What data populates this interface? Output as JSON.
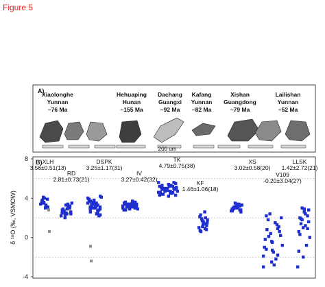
{
  "figure_title": "Figure 5",
  "panel_a": {
    "label": "A)",
    "scale_label": "200 um",
    "samples": [
      {
        "name": "Xiaolonghe",
        "province": "Yunnan",
        "age": "~76 Ma"
      },
      {
        "name": "Hehuaping",
        "province": "Hunan",
        "age": "~155 Ma"
      },
      {
        "name": "Dachang",
        "province": "Guangxi",
        "age": "~92 Ma"
      },
      {
        "name": "Kafang",
        "province": "Yunnan",
        "age": "~82 Ma"
      },
      {
        "name": "Xishan",
        "province": "Guangdong",
        "age": "~79 Ma"
      },
      {
        "name": "Lailishan",
        "province": "Yunnan",
        "age": "~52 Ma"
      }
    ]
  },
  "colors": {
    "data": "#1f2fcf",
    "outlier": "#8a8a8a",
    "title": "#e0231d",
    "gridline": "#bdbdbd"
  },
  "chart_data": {
    "type": "scatter",
    "panel_label": "B)",
    "ylabel": "δ ¹⁸O (‰, VSMOW)",
    "ylim": [
      -4,
      8
    ],
    "yticks": [
      -4,
      0,
      4,
      8
    ],
    "gridlines": [
      -2,
      2,
      6
    ],
    "groups": [
      {
        "code": "XLH",
        "stats": "3.56±0.51(13)",
        "values": [
          3.4,
          4.0,
          3.2,
          3.8,
          3.5,
          3.1,
          3.7,
          3.3,
          3.9,
          3.6,
          3.0,
          3.5,
          4.1
        ],
        "outliers": [
          2.8,
          0.6
        ]
      },
      {
        "code": "RD",
        "stats": "2.81±0.73(21)",
        "values": [
          2.2,
          2.5,
          3.0,
          2.7,
          3.3,
          2.4,
          2.9,
          3.1,
          2.6,
          2.3,
          3.4,
          2.8,
          2.0,
          3.2,
          2.5,
          2.9,
          3.0,
          2.6,
          2.4,
          3.5,
          2.7
        ]
      },
      {
        "code": "DSPK",
        "stats": "3.25±1.17(31)",
        "values": [
          4.0,
          3.6,
          3.3,
          2.9,
          3.8,
          3.1,
          2.6,
          3.5,
          4.2,
          3.0,
          2.4,
          3.7,
          3.4,
          2.8,
          3.9,
          3.2,
          2.2,
          3.6,
          3.0,
          4.1,
          3.3,
          2.7,
          3.5,
          3.8,
          2.5,
          3.1,
          3.4,
          2.9,
          3.7,
          3.2,
          2.3
        ],
        "outliers": [
          -0.9,
          -2.4
        ]
      },
      {
        "code": "IV",
        "stats": "3.27±0.42(32)",
        "values": [
          3.0,
          3.4,
          3.2,
          3.6,
          2.9,
          3.3,
          3.5,
          3.1,
          3.4,
          3.2,
          3.7,
          2.8,
          3.3,
          3.0,
          3.5,
          3.2,
          3.6,
          3.1,
          3.4,
          2.9,
          3.3,
          3.5,
          3.2,
          3.0,
          3.6,
          3.4,
          3.1,
          3.3,
          2.8,
          3.5,
          3.2,
          3.4
        ]
      },
      {
        "code": "TK",
        "stats": "4.79±0.75(38)",
        "values": [
          4.6,
          5.0,
          5.2,
          4.4,
          4.8,
          5.5,
          4.9,
          4.5,
          5.1,
          4.7,
          5.3,
          4.3,
          4.8,
          5.0,
          4.6,
          5.4,
          4.9,
          4.4,
          5.2,
          4.7,
          5.0,
          4.5,
          5.6,
          4.8,
          4.6,
          5.1,
          4.9,
          4.3,
          5.3,
          4.7,
          5.0,
          4.8,
          4.5,
          5.2,
          4.9,
          5.6,
          4.6,
          4.2
        ]
      },
      {
        "code": "KF",
        "stats": "1.46±1.06(18)",
        "values": [
          1.0,
          1.6,
          2.0,
          0.6,
          1.3,
          1.8,
          2.3,
          0.9,
          1.5,
          1.1,
          2.6,
          0.7,
          1.7,
          1.2,
          2.1,
          1.4,
          0.8,
          1.9
        ]
      },
      {
        "code": "XS",
        "stats": "3.02±0.58(20)",
        "values": [
          2.7,
          3.1,
          3.4,
          2.9,
          3.2,
          2.6,
          3.0,
          3.3,
          2.8,
          3.5,
          3.1,
          2.7,
          3.0,
          3.2,
          2.9,
          3.4,
          2.8,
          3.1,
          3.0,
          3.3
        ]
      },
      {
        "code": "V109",
        "stats": "-0.20±3.04(27)",
        "values": [
          -3.0,
          -2.5,
          -1.8,
          -1.2,
          -0.5,
          0.2,
          0.8,
          1.5,
          2.0,
          2.4,
          -2.2,
          -1.0,
          0.4,
          1.1,
          -0.2,
          -1.5,
          0.6,
          1.8,
          -2.8,
          -0.8,
          0.1,
          1.3,
          -1.9,
          -0.4,
          0.9,
          2.2,
          -1.3
        ]
      },
      {
        "code": "LLSK",
        "stats": "1.42±2.72(21)",
        "values": [
          -3.0,
          -2.0,
          -0.8,
          0.3,
          1.0,
          1.6,
          2.0,
          2.4,
          2.8,
          3.0,
          1.2,
          0.6,
          1.8,
          2.2,
          -1.4,
          2.6,
          0.9,
          1.4,
          2.9,
          0.0,
          1.9
        ]
      }
    ]
  }
}
